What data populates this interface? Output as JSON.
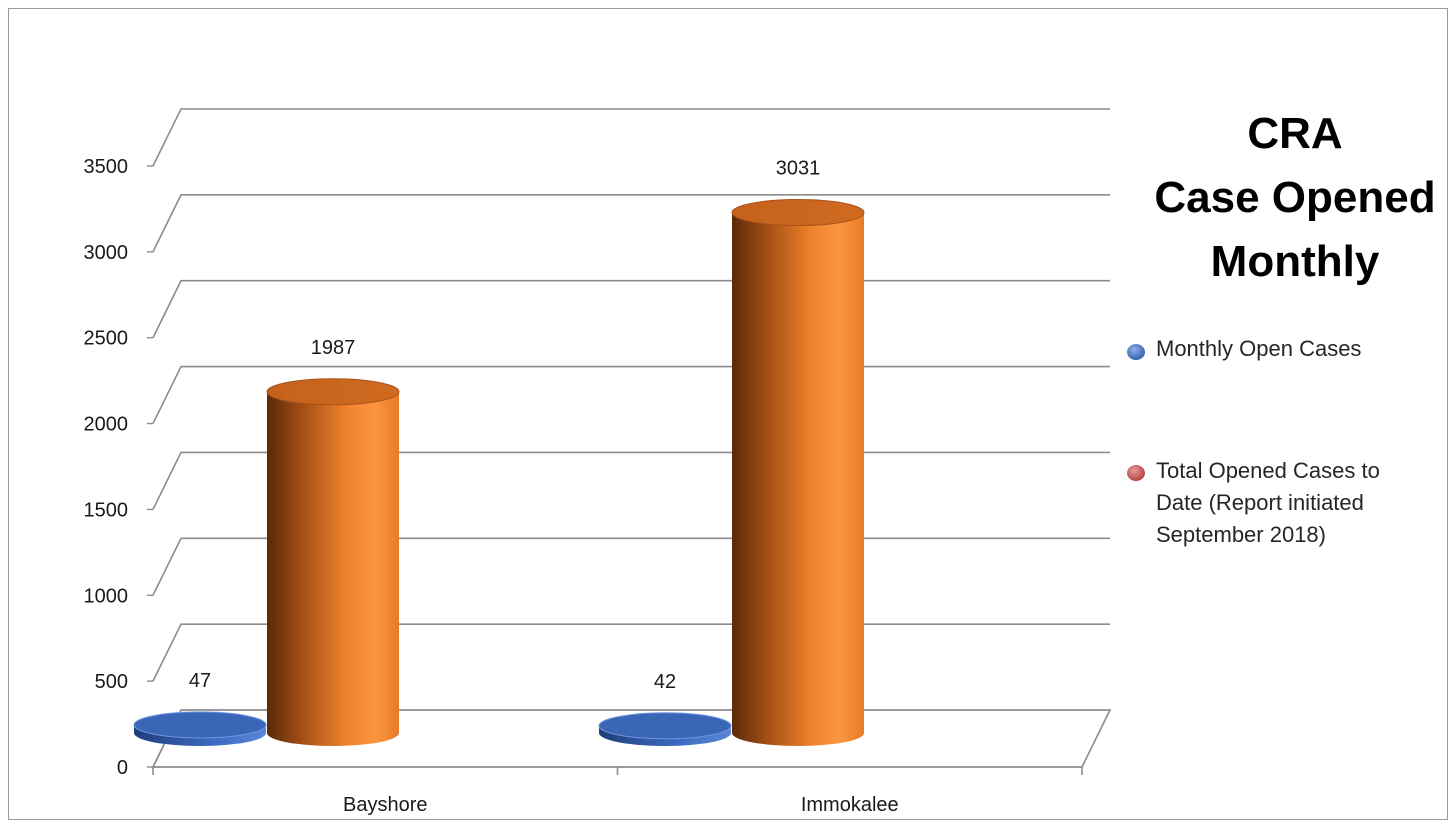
{
  "chart_data": {
    "type": "bar",
    "style": "3d-cylinder",
    "title": [
      "CRA",
      "Case Opened",
      "Monthly"
    ],
    "categories": [
      "Bayshore",
      "Immokalee"
    ],
    "series": [
      {
        "name": "Monthly Open Cases",
        "values": [
          47,
          42
        ],
        "color": "#3f6dc4"
      },
      {
        "name": "Total Opened Cases to Date (Report initiated September 2018)",
        "legend_lines": [
          "Total Opened Cases to",
          "Date (Report initiated",
          "September 2018)"
        ],
        "values": [
          1987,
          3031
        ],
        "color": "#f07d2a"
      }
    ],
    "ylim": [
      0,
      3500
    ],
    "yticks": [
      "0",
      "500",
      "1000",
      "1500",
      "2000",
      "2500",
      "3000",
      "3500"
    ],
    "grid": true,
    "legend_position": "right",
    "data_labels": true
  }
}
